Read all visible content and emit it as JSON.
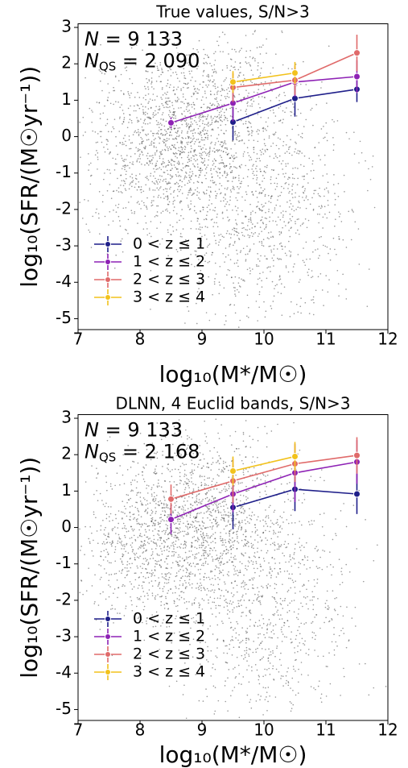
{
  "chart_data": [
    {
      "type": "line",
      "title": "True values, S/N>3",
      "xlabel": "log₁₀(M*/M☉)",
      "ylabel": "log₁₀(SFR/(M☉yr⁻¹))",
      "annotations": [
        {
          "symbol": "N",
          "rest": " = 9 133"
        },
        {
          "symbol": "N",
          "sub": "QS",
          "rest": " = 2 090"
        }
      ],
      "xlim": [
        7,
        12
      ],
      "ylim": [
        -5.3,
        3.1
      ],
      "xticks": [
        7,
        8,
        9,
        10,
        11,
        12
      ],
      "yticks": [
        -5,
        -4,
        -3,
        -2,
        -1,
        0,
        1,
        2,
        3
      ],
      "legend": "lower left",
      "series": [
        {
          "name": "0 < z ≤ 1",
          "color": "#1f1f8a",
          "x": [
            9.5,
            10.5,
            11.5
          ],
          "values": [
            0.4,
            1.05,
            1.3
          ],
          "errors": [
            0.5,
            0.5,
            0.35
          ]
        },
        {
          "name": "1 < z ≤ 2",
          "color": "#8e22b5",
          "x": [
            8.5,
            9.5,
            10.5,
            11.5
          ],
          "values": [
            0.38,
            0.92,
            1.5,
            1.65
          ],
          "errors": [
            0.15,
            0.5,
            0.4,
            0.45
          ]
        },
        {
          "name": "2 < z ≤ 3",
          "color": "#e06a6a",
          "x": [
            9.5,
            10.5,
            11.5
          ],
          "values": [
            1.35,
            1.55,
            2.3
          ],
          "errors": [
            0.4,
            0.4,
            0.5
          ]
        },
        {
          "name": "3 < z ≤ 4",
          "color": "#f2c21c",
          "x": [
            9.5,
            10.5
          ],
          "values": [
            1.5,
            1.75
          ],
          "errors": [
            0.3,
            0.3
          ]
        }
      ]
    },
    {
      "type": "line",
      "title": "DLNN, 4 Euclid bands, S/N>3",
      "xlabel": "log₁₀(M*/M☉)",
      "ylabel": "log₁₀(SFR/(M☉yr⁻¹))",
      "annotations": [
        {
          "symbol": "N",
          "rest": " = 9 133"
        },
        {
          "symbol": "N",
          "sub": "QS",
          "rest": " = 2 168"
        }
      ],
      "xlim": [
        7,
        12
      ],
      "ylim": [
        -5.3,
        3.1
      ],
      "xticks": [
        7,
        8,
        9,
        10,
        11,
        12
      ],
      "yticks": [
        -5,
        -4,
        -3,
        -2,
        -1,
        0,
        1,
        2,
        3
      ],
      "legend": "lower left",
      "series": [
        {
          "name": "0 < z ≤ 1",
          "color": "#1f1f8a",
          "x": [
            9.5,
            10.5,
            11.5
          ],
          "values": [
            0.55,
            1.05,
            0.92
          ],
          "errors": [
            0.6,
            0.6,
            0.55
          ]
        },
        {
          "name": "1 < z ≤ 2",
          "color": "#8e22b5",
          "x": [
            8.5,
            9.5,
            10.5,
            11.5
          ],
          "values": [
            0.22,
            0.92,
            1.5,
            1.8
          ],
          "errors": [
            0.4,
            0.5,
            0.8,
            0.6
          ]
        },
        {
          "name": "2 < z ≤ 3",
          "color": "#e06a6a",
          "x": [
            8.5,
            9.5,
            10.5,
            11.5
          ],
          "values": [
            0.78,
            1.28,
            1.75,
            1.98
          ],
          "errors": [
            0.4,
            0.6,
            0.5,
            0.5
          ]
        },
        {
          "name": "3 < z ≤ 4",
          "color": "#f2c21c",
          "x": [
            9.5,
            10.5
          ],
          "values": [
            1.55,
            1.95
          ],
          "errors": [
            0.4,
            0.4
          ]
        }
      ]
    }
  ]
}
